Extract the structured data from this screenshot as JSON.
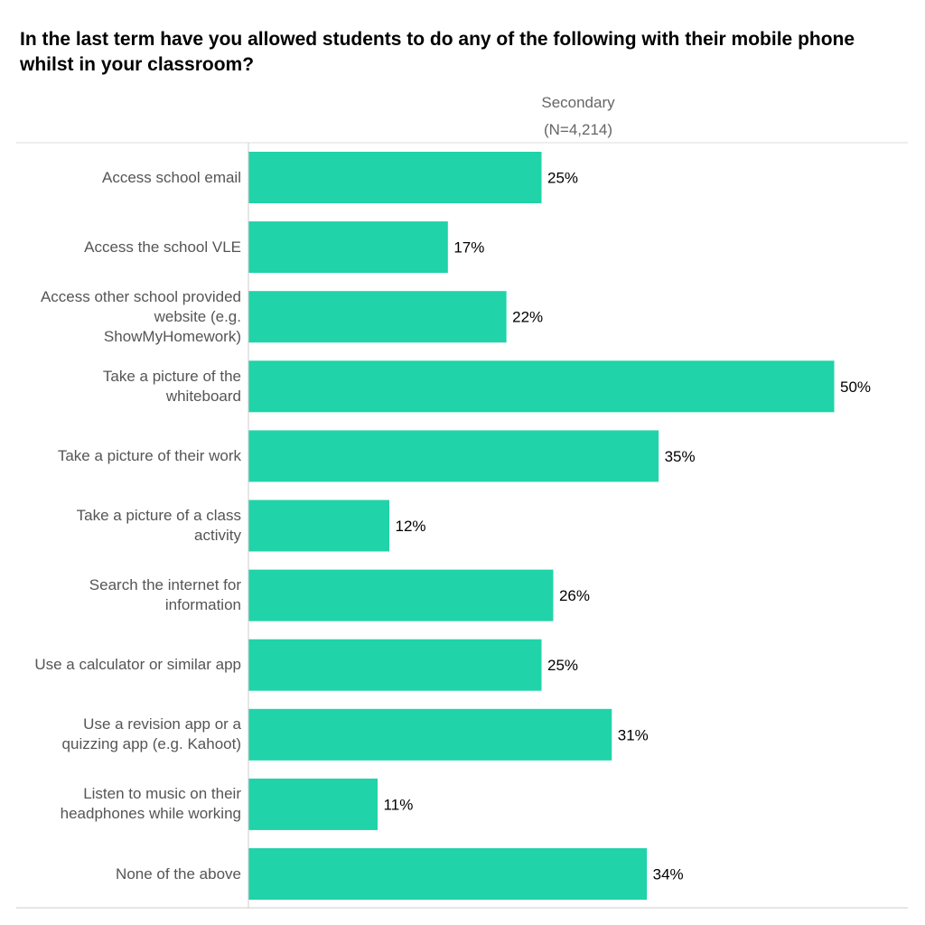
{
  "chart_data": {
    "type": "bar",
    "orientation": "horizontal",
    "title": "In the last term have you allowed students to do any of the following with their mobile phone whilst in your classroom?",
    "series_header": {
      "name": "Secondary",
      "sample": "(N=4,214)"
    },
    "categories": [
      "Access school email",
      "Access the school VLE",
      "Access other school provided website (e.g. ShowMyHomework)",
      "Take a picture of the whiteboard",
      "Take a picture of their work",
      "Take a picture of a class activity",
      "Search the internet for information",
      "Use a calculator or similar app",
      "Use a revision app or a quizzing app (e.g. Kahoot)",
      "Listen to music on their headphones while working",
      "None of the above"
    ],
    "category_lines": [
      [
        "Access school email"
      ],
      [
        "Access the school VLE"
      ],
      [
        "Access other school provided",
        "website (e.g.",
        "ShowMyHomework)"
      ],
      [
        "Take a picture of the",
        "whiteboard"
      ],
      [
        "Take a picture of their work"
      ],
      [
        "Take a picture of a class",
        "activity"
      ],
      [
        "Search the internet for",
        "information"
      ],
      [
        "Use a calculator or similar app"
      ],
      [
        "Use a revision app or a",
        "quizzing app (e.g. Kahoot)"
      ],
      [
        "Listen to music on their",
        "headphones while working"
      ],
      [
        "None of the above"
      ]
    ],
    "values": [
      25,
      17,
      22,
      50,
      35,
      12,
      26,
      25,
      31,
      11,
      34
    ],
    "value_labels": [
      "25%",
      "17%",
      "22%",
      "50%",
      "35%",
      "12%",
      "26%",
      "25%",
      "31%",
      "11%",
      "34%"
    ],
    "unit": "%",
    "xlim": [
      0,
      50
    ],
    "grid": false,
    "legend": "none",
    "bar_color": "#20d3a8"
  }
}
